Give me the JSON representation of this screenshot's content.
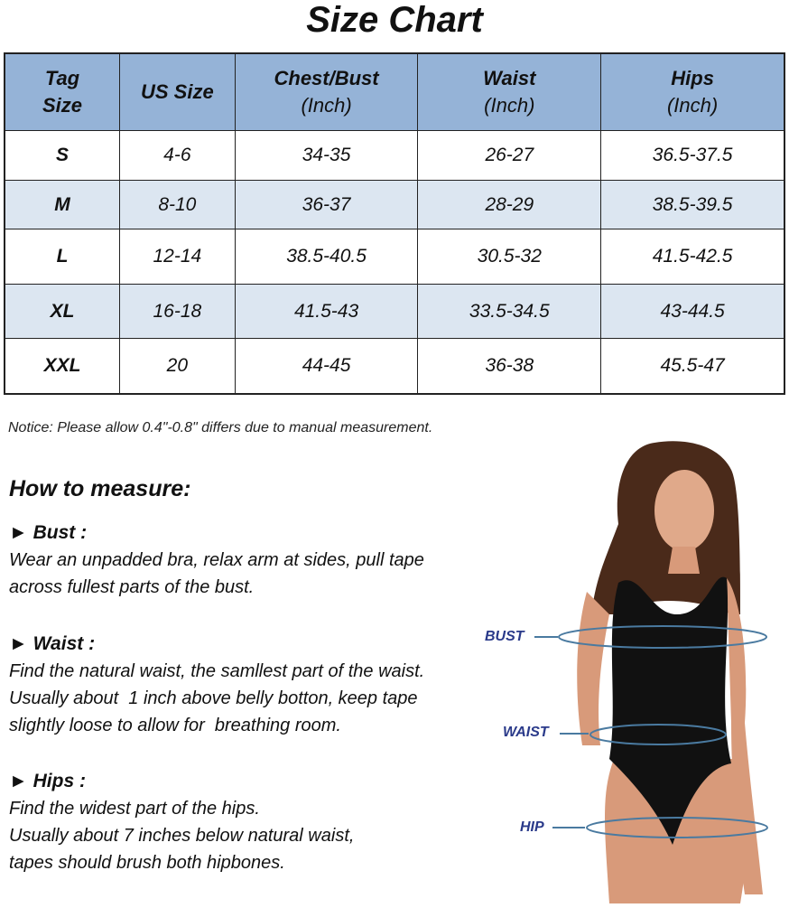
{
  "title": "Size Chart",
  "table": {
    "headers": [
      {
        "main": "Tag Size",
        "unit": ""
      },
      {
        "main": "US Size",
        "unit": ""
      },
      {
        "main": "Chest/Bust",
        "unit": "(Inch)"
      },
      {
        "main": "Waist",
        "unit": "(Inch)"
      },
      {
        "main": "Hips",
        "unit": "(Inch)"
      }
    ],
    "rows": [
      [
        "S",
        "4-6",
        "34-35",
        "26-27",
        "36.5-37.5"
      ],
      [
        "M",
        "8-10",
        "36-37",
        "28-29",
        "38.5-39.5"
      ],
      [
        "L",
        "12-14",
        "38.5-40.5",
        "30.5-32",
        "41.5-42.5"
      ],
      [
        "XL",
        "16-18",
        "41.5-43",
        "33.5-34.5",
        "43-44.5"
      ],
      [
        "XXL",
        "20",
        "44-45",
        "36-38",
        "45.5-47"
      ]
    ],
    "header_color": "#95b3d7",
    "alt_row_color": "#dce6f1"
  },
  "notice": "Notice: Please allow 0.4\"-0.8\" differs due to manual measurement.",
  "how_to": {
    "title": "How to measure:",
    "sections": [
      {
        "heading": "► Bust :",
        "lines": [
          "Wear an unpadded bra, relax arm at sides, pull tape",
          "across fullest parts of the bust."
        ]
      },
      {
        "heading": "► Waist :",
        "lines": [
          "Find the natural waist, the samllest part of the waist.",
          "Usually about  1 inch above belly botton, keep tape",
          "slightly loose to allow for  breathing room."
        ]
      },
      {
        "heading": "► Hips :",
        "lines": [
          "Find the widest part of the hips.",
          "Usually about 7 inches below natural waist,",
          "tapes should brush both hipbones."
        ]
      }
    ]
  },
  "figure": {
    "labels": {
      "bust": "BUST",
      "waist": "WAIST",
      "hip": "HIP"
    },
    "label_color": "#2a3a8a"
  }
}
